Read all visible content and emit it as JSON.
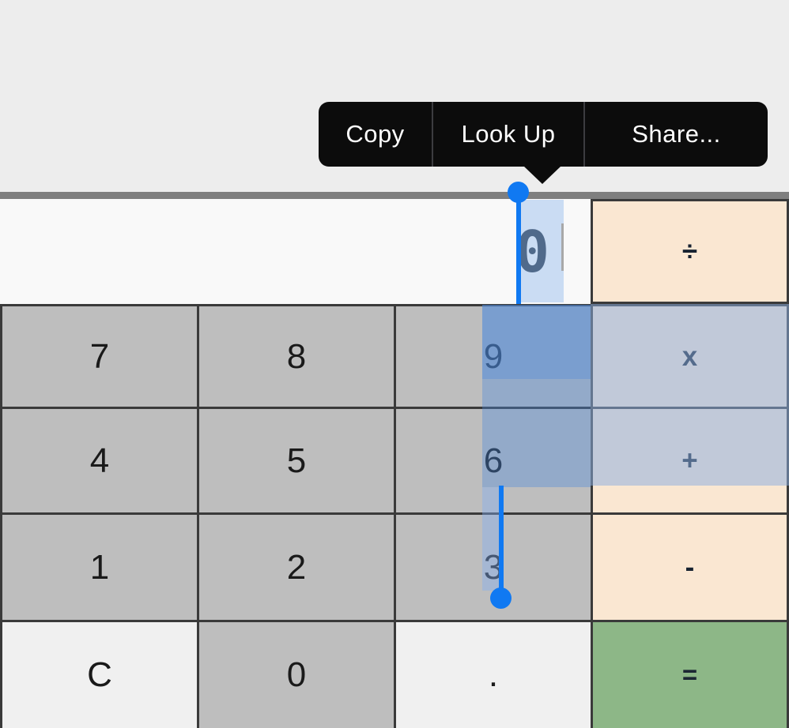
{
  "context_menu": {
    "items": [
      {
        "label": "Copy"
      },
      {
        "label": "Look Up"
      },
      {
        "label": "Share..."
      }
    ]
  },
  "calculator": {
    "display": {
      "value": "0"
    },
    "divide_key": {
      "label": "÷"
    },
    "keys": [
      {
        "label": "7"
      },
      {
        "label": "8"
      },
      {
        "label": "9"
      },
      {
        "label": "x"
      },
      {
        "label": "4"
      },
      {
        "label": "5"
      },
      {
        "label": "6"
      },
      {
        "label": "+"
      },
      {
        "label": "1"
      },
      {
        "label": "2"
      },
      {
        "label": "3"
      },
      {
        "label": "-"
      },
      {
        "label": "C"
      },
      {
        "label": "0"
      },
      {
        "label": "."
      },
      {
        "label": "="
      }
    ]
  },
  "colors": {
    "selection_accent_blue": "#1079f2",
    "key_gray": "#bebebe",
    "key_light": "#f0f0f0",
    "operator_peach": "#fae7d2",
    "equals_green": "#8db787",
    "menu_background": "#0c0c0c",
    "separator_bar": "#7f7f7f"
  }
}
